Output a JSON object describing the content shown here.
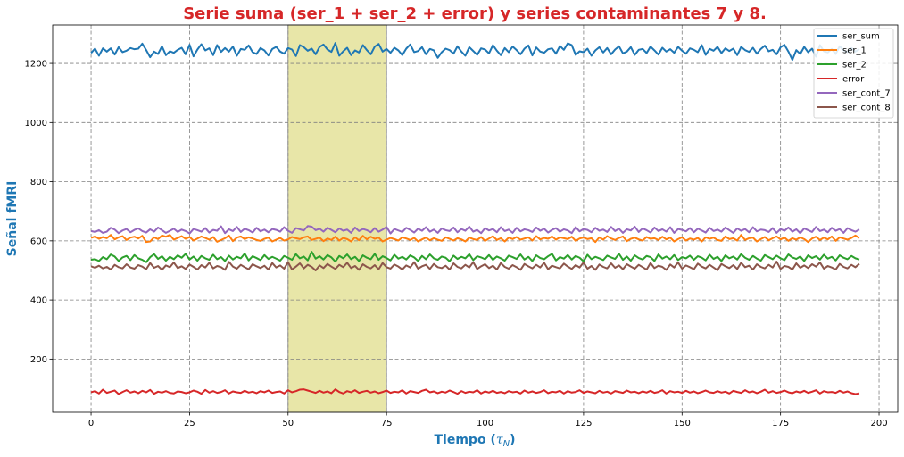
{
  "chart_data": {
    "type": "line",
    "title": "Serie suma (ser_1 + ser_2 + error) y series contaminantes 7 y 8.",
    "xlabel_main": "Tiempo (",
    "xlabel_symbol": "τ",
    "xlabel_sub": "N",
    "xlabel_close": ")",
    "ylabel": "Señal fMRI",
    "xlim": [
      -9.75,
      204.75
    ],
    "ylim": [
      20,
      1330
    ],
    "xticks": [
      0,
      25,
      50,
      75,
      100,
      125,
      150,
      175,
      200
    ],
    "xtick_labels": [
      "0",
      "25",
      "50",
      "75",
      "100",
      "125",
      "150",
      "175",
      "200"
    ],
    "yticks": [
      200,
      400,
      600,
      800,
      1000,
      1200
    ],
    "ytick_labels": [
      "200",
      "400",
      "600",
      "800",
      "1000",
      "1200"
    ],
    "grid": true,
    "grid_style": "dashed",
    "legend_position": "top-right",
    "highlight_span": {
      "x_start": 50,
      "x_end": 75,
      "color": "#e8e6a8"
    },
    "colors": {
      "title": "#d62728",
      "axis_label": "#1f77b4",
      "grid": "#808080",
      "highlight_edge": "#808080"
    },
    "x_start": 0,
    "x_step": 1,
    "series": [
      {
        "name": "ser_sum",
        "color": "#1f77b4",
        "values": [
          1235,
          1250,
          1226,
          1251,
          1240,
          1251,
          1230,
          1255,
          1238,
          1243,
          1252,
          1248,
          1250,
          1267,
          1245,
          1221,
          1240,
          1232,
          1258,
          1228,
          1241,
          1236,
          1246,
          1253,
          1231,
          1263,
          1224,
          1247,
          1265,
          1244,
          1251,
          1228,
          1262,
          1239,
          1252,
          1240,
          1257,
          1226,
          1249,
          1246,
          1261,
          1238,
          1232,
          1252,
          1244,
          1227,
          1249,
          1256,
          1240,
          1233,
          1252,
          1247,
          1225,
          1262,
          1255,
          1243,
          1250,
          1231,
          1256,
          1264,
          1247,
          1239,
          1269,
          1226,
          1241,
          1253,
          1228,
          1244,
          1237,
          1262,
          1245,
          1231,
          1257,
          1266,
          1240,
          1249,
          1236,
          1253,
          1244,
          1228,
          1250,
          1264,
          1238,
          1242,
          1255,
          1231,
          1249,
          1244,
          1219,
          1238,
          1250,
          1245,
          1233,
          1258,
          1240,
          1226,
          1255,
          1242,
          1229,
          1251,
          1247,
          1234,
          1262,
          1243,
          1228,
          1252,
          1238,
          1257,
          1245,
          1231,
          1250,
          1261,
          1227,
          1254,
          1240,
          1236,
          1248,
          1251,
          1233,
          1259,
          1246,
          1268,
          1262,
          1229,
          1241,
          1238,
          1250,
          1226,
          1244,
          1255,
          1237,
          1252,
          1231,
          1247,
          1258,
          1234,
          1240,
          1255,
          1229,
          1246,
          1249,
          1235,
          1257,
          1244,
          1230,
          1253,
          1240,
          1248,
          1236,
          1256,
          1243,
          1233,
          1251,
          1246,
          1238,
          1262,
          1229,
          1249,
          1243,
          1256,
          1235,
          1251,
          1242,
          1250,
          1228,
          1256,
          1245,
          1239,
          1253,
          1233,
          1249,
          1260,
          1241,
          1246,
          1231,
          1255,
          1263,
          1240,
          1212,
          1245,
          1232,
          1256,
          1238,
          1250,
          1223,
          1262,
          1241,
          1237,
          1249,
          1232,
          1258,
          1244,
          1238,
          1252,
          1240,
          1248
        ]
      },
      {
        "name": "ser_1",
        "color": "#ff7f0e",
        "values": [
          610,
          615,
          607,
          613,
          609,
          620,
          605,
          612,
          616,
          603,
          611,
          614,
          608,
          617,
          596,
          598,
          612,
          606,
          618,
          614,
          620,
          604,
          610,
          616,
          607,
          613,
          601,
          608,
          615,
          610,
          604,
          613,
          597,
          603,
          609,
          618,
          599,
          611,
          615,
          606,
          612,
          608,
          603,
          600,
          607,
          611,
          598,
          604,
          610,
          601,
          605,
          613,
          609,
          606,
          612,
          615,
          603,
          607,
          611,
          599,
          608,
          603,
          614,
          601,
          610,
          606,
          598,
          612,
          602,
          617,
          605,
          614,
          607,
          611,
          598,
          604,
          610,
          606,
          601,
          612,
          608,
          603,
          610,
          598,
          605,
          611,
          602,
          609,
          604,
          600,
          612,
          607,
          601,
          609,
          605,
          598,
          611,
          606,
          603,
          613,
          600,
          608,
          616,
          603,
          609,
          598,
          611,
          606,
          613,
          604,
          608,
          612,
          601,
          616,
          605,
          610,
          607,
          615,
          604,
          612,
          609,
          606,
          614,
          600,
          608,
          611,
          606,
          609,
          596,
          612,
          604,
          616,
          608,
          603,
          610,
          615,
          599,
          607,
          611,
          605,
          601,
          613,
          607,
          609,
          603,
          614,
          605,
          611,
          598,
          606,
          612,
          601,
          608,
          604,
          610,
          598,
          612,
          607,
          611,
          603,
          600,
          615,
          606,
          609,
          601,
          620,
          603,
          609,
          611,
          598,
          606,
          613,
          602,
          609,
          615,
          605,
          611,
          600,
          609,
          604,
          612,
          606,
          596,
          608,
          614,
          603,
          611,
          605,
          615,
          600,
          612,
          608,
          604,
          610,
          618,
          610
        ]
      },
      {
        "name": "ser_2",
        "color": "#2ca02c",
        "values": [
          536,
          538,
          532,
          545,
          538,
          554,
          547,
          532,
          544,
          549,
          535,
          552,
          541,
          536,
          528,
          545,
          555,
          539,
          548,
          533,
          546,
          538,
          551,
          543,
          556,
          537,
          547,
          533,
          549,
          541,
          536,
          553,
          538,
          545,
          532,
          550,
          537,
          546,
          541,
          557,
          534,
          548,
          542,
          535,
          552,
          539,
          546,
          540,
          533,
          549,
          543,
          536,
          555,
          541,
          547,
          534,
          563,
          540,
          548,
          537,
          552,
          544,
          530,
          549,
          541,
          554,
          538,
          546,
          532,
          551,
          543,
          538,
          556,
          536,
          548,
          542,
          534,
          553,
          540,
          546,
          537,
          551,
          544,
          532,
          549,
          538,
          554,
          541,
          536,
          547,
          543,
          531,
          550,
          539,
          546,
          541,
          555,
          535,
          548,
          544,
          538,
          552,
          536,
          547,
          541,
          533,
          550,
          545,
          539,
          554,
          537,
          546,
          532,
          551,
          542,
          538,
          548,
          556,
          534,
          545,
          540,
          552,
          537,
          549,
          543,
          531,
          553,
          538,
          546,
          541,
          535,
          550,
          544,
          539,
          556,
          536,
          547,
          533,
          551,
          542,
          537,
          549,
          545,
          532,
          554,
          540,
          547,
          538,
          552,
          535,
          545,
          541,
          550,
          536,
          548,
          543,
          534,
          553,
          539,
          546,
          532,
          551,
          541,
          547,
          537,
          555,
          543,
          536,
          549,
          540,
          533,
          552,
          545,
          538,
          550,
          541,
          535,
          554,
          544,
          539,
          547,
          532,
          551,
          542,
          548,
          537,
          553,
          540,
          546,
          534,
          551,
          543,
          538,
          549,
          541,
          537
        ]
      },
      {
        "name": "error",
        "color": "#d62728",
        "values": [
          88,
          92,
          84,
          97,
          86,
          90,
          94,
          82,
          89,
          95,
          87,
          91,
          85,
          93,
          88,
          96,
          83,
          90,
          87,
          92,
          86,
          84,
          91,
          89,
          85,
          88,
          94,
          90,
          83,
          96,
          87,
          92,
          86,
          89,
          95,
          84,
          91,
          88,
          86,
          93,
          87,
          90,
          85,
          92,
          88,
          94,
          86,
          89,
          91,
          84,
          95,
          88,
          92,
          97,
          98,
          94,
          90,
          86,
          93,
          87,
          91,
          85,
          98,
          89,
          84,
          92,
          88,
          95,
          86,
          90,
          93,
          87,
          91,
          85,
          89,
          94,
          86,
          90,
          88,
          95,
          84,
          92,
          89,
          86,
          93,
          97,
          88,
          91,
          85,
          90,
          87,
          94,
          89,
          83,
          92,
          86,
          90,
          88,
          95,
          84,
          91,
          87,
          93,
          86,
          89,
          85,
          92,
          88,
          90,
          84,
          94,
          87,
          91,
          86,
          89,
          95,
          85,
          90,
          88,
          93,
          84,
          92,
          87,
          89,
          95,
          86,
          91,
          88,
          85,
          93,
          87,
          90,
          84,
          92,
          89,
          86,
          94,
          88,
          90,
          85,
          91,
          87,
          93,
          86,
          89,
          95,
          84,
          92,
          88,
          90,
          86,
          93,
          87,
          91,
          85,
          89,
          94,
          88,
          86,
          92,
          87,
          90,
          84,
          93,
          89,
          86,
          95,
          88,
          91,
          85,
          90,
          97,
          87,
          92,
          86,
          89,
          94,
          88,
          85,
          91,
          87,
          93,
          86,
          90,
          95,
          84,
          92,
          88,
          89,
          86,
          93,
          87,
          91,
          85,
          82,
          84
        ]
      },
      {
        "name": "ser_cont_7",
        "color": "#9467bd",
        "values": [
          633,
          630,
          636,
          627,
          631,
          644,
          638,
          626,
          635,
          640,
          629,
          637,
          642,
          633,
          628,
          639,
          631,
          645,
          636,
          627,
          634,
          641,
          630,
          638,
          633,
          625,
          640,
          636,
          631,
          643,
          628,
          637,
          634,
          649,
          626,
          639,
          633,
          647,
          630,
          641,
          636,
          628,
          644,
          632,
          638,
          629,
          640,
          637,
          631,
          646,
          634,
          627,
          643,
          639,
          635,
          650,
          648,
          636,
          641,
          631,
          644,
          637,
          629,
          642,
          634,
          638,
          627,
          645,
          633,
          640,
          636,
          629,
          643,
          631,
          638,
          647,
          625,
          640,
          635,
          630,
          644,
          637,
          628,
          641,
          634,
          646,
          631,
          638,
          627,
          642,
          636,
          633,
          645,
          629,
          640,
          634,
          648,
          631,
          637,
          626,
          643,
          635,
          640,
          629,
          646,
          633,
          638,
          627,
          644,
          632,
          639,
          636,
          630,
          645,
          634,
          641,
          628,
          637,
          643,
          631,
          639,
          635,
          626,
          646,
          632,
          640,
          637,
          629,
          644,
          634,
          638,
          630,
          647,
          633,
          641,
          627,
          639,
          635,
          648,
          630,
          642,
          636,
          628,
          645,
          633,
          639,
          631,
          646,
          627,
          640,
          637,
          632,
          643,
          629,
          641,
          635,
          628,
          644,
          633,
          638,
          631,
          645,
          636,
          627,
          642,
          634,
          640,
          629,
          646,
          632,
          638,
          636,
          630,
          643,
          627,
          640,
          634,
          645,
          631,
          639,
          626,
          642,
          636,
          630,
          647,
          633,
          638,
          629,
          644,
          634,
          640,
          627,
          643,
          636,
          631,
          638
        ]
      },
      {
        "name": "ser_cont_8",
        "color": "#8c564b",
        "values": [
          514,
          509,
          516,
          507,
          512,
          503,
          519,
          511,
          507,
          521,
          510,
          506,
          518,
          513,
          504,
          525,
          509,
          515,
          502,
          517,
          511,
          527,
          508,
          514,
          505,
          520,
          512,
          503,
          518,
          510,
          526,
          507,
          515,
          511,
          502,
          529,
          513,
          506,
          519,
          511,
          504,
          521,
          514,
          508,
          516,
          503,
          525,
          510,
          517,
          506,
          528,
          503,
          513,
          524,
          507,
          519,
          512,
          500,
          517,
          508,
          522,
          513,
          505,
          519,
          511,
          526,
          508,
          515,
          502,
          521,
          512,
          507,
          518,
          504,
          525,
          511,
          506,
          520,
          513,
          503,
          517,
          510,
          528,
          506,
          514,
          519,
          505,
          522,
          511,
          508,
          516,
          503,
          524,
          512,
          507,
          519,
          510,
          528,
          505,
          514,
          521,
          508,
          516,
          503,
          525,
          512,
          506,
          518,
          511,
          502,
          522,
          514,
          507,
          519,
          510,
          526,
          504,
          516,
          511,
          507,
          523,
          513,
          505,
          518,
          510,
          527,
          506,
          515,
          502,
          520,
          512,
          507,
          524,
          509,
          517,
          504,
          521,
          513,
          506,
          519,
          511,
          503,
          525,
          508,
          516,
          512,
          502,
          520,
          510,
          527,
          506,
          517,
          511,
          504,
          523,
          513,
          507,
          519,
          510,
          501,
          522,
          514,
          508,
          518,
          505,
          526,
          511,
          516,
          503,
          521,
          512,
          507,
          519,
          510,
          530,
          505,
          515,
          512,
          503,
          524,
          509,
          517,
          508,
          521,
          513,
          527,
          506,
          515,
          510,
          503,
          522,
          512,
          507,
          519,
          511,
          522
        ]
      }
    ]
  }
}
